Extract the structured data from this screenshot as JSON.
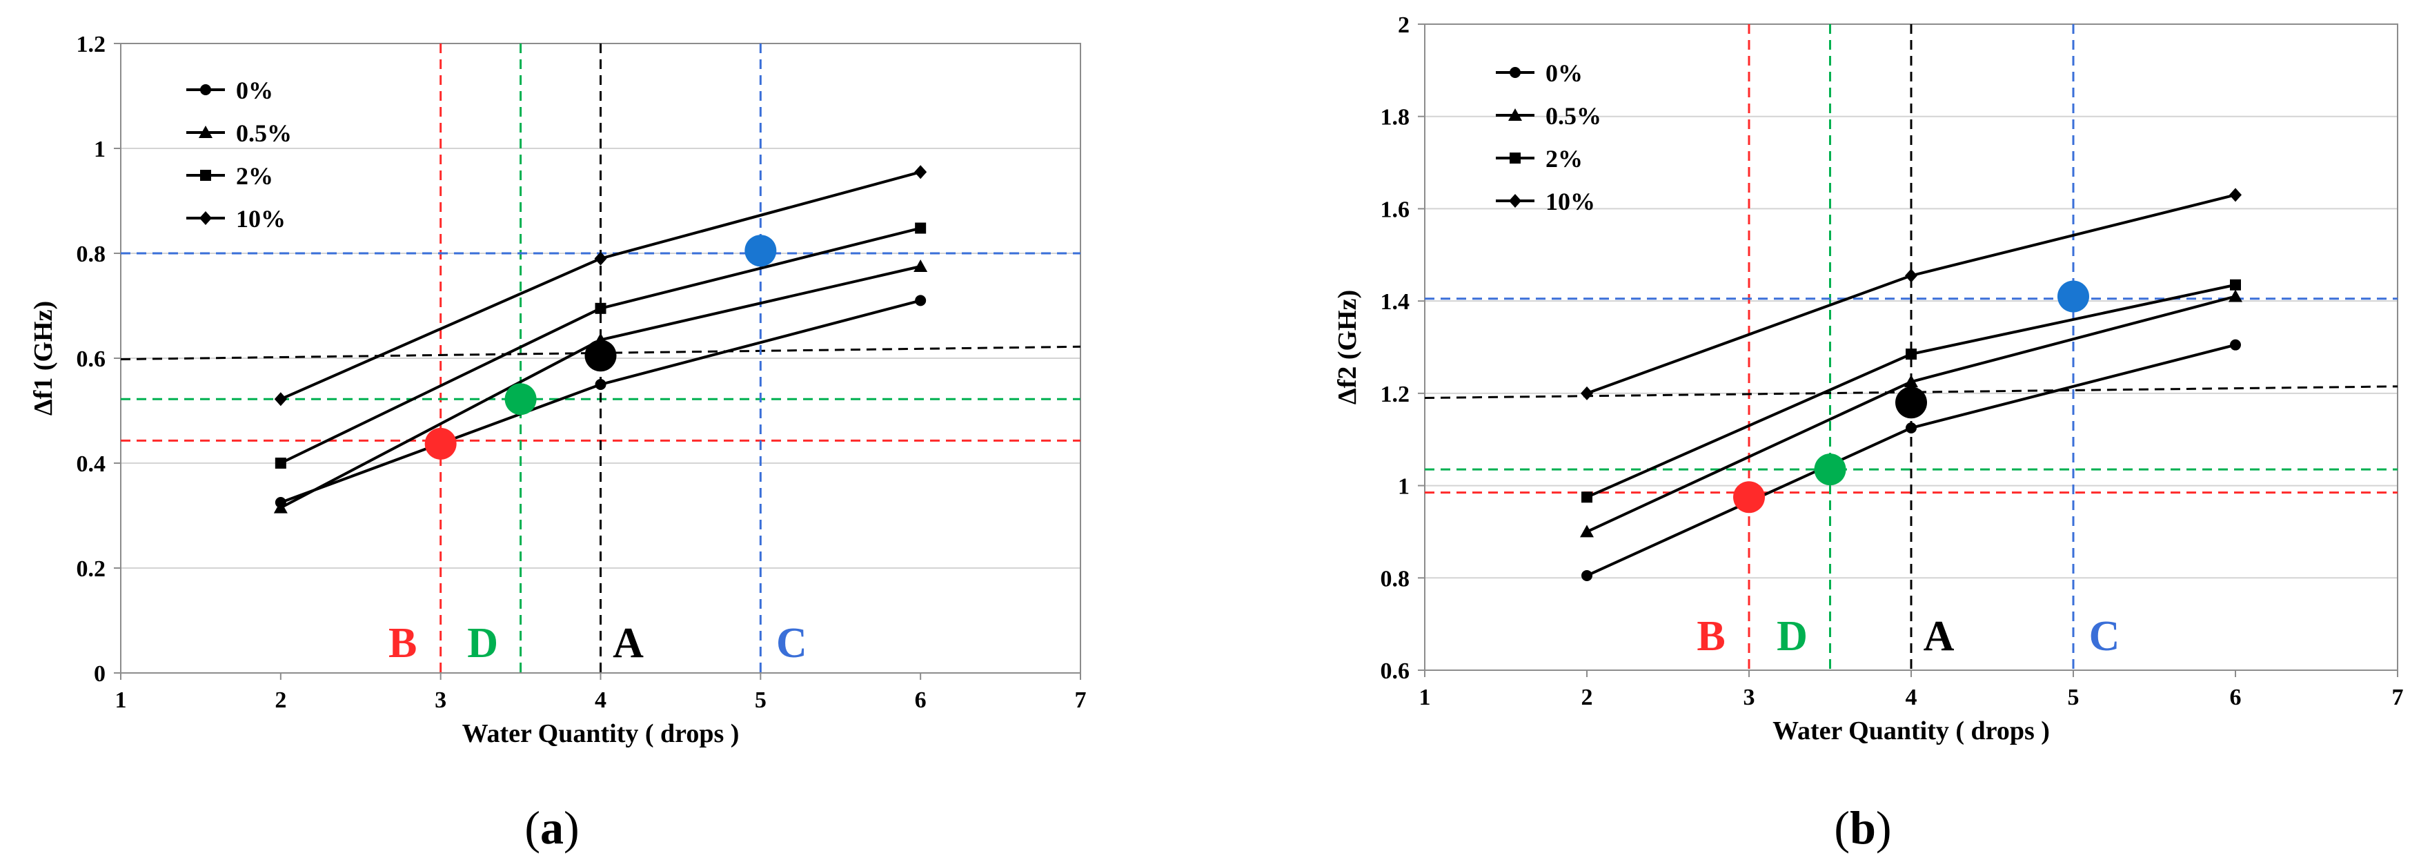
{
  "chart_data": [
    {
      "type": "line",
      "caption_letter": "a",
      "xlabel": "Water Quantity ( drops )",
      "ylabel": "Δf1 (GHz)",
      "xlim": [
        1,
        7
      ],
      "ylim": [
        0,
        1.2
      ],
      "xticks": [
        1,
        2,
        3,
        4,
        5,
        6,
        7
      ],
      "yticks": [
        0,
        0.2,
        0.4,
        0.6,
        0.8,
        1,
        1.2
      ],
      "xtick_labels": [
        "1",
        "2",
        "3",
        "4",
        "5",
        "6",
        "7"
      ],
      "ytick_labels": [
        "0",
        "0.2",
        "0.4",
        "0.6",
        "0.8",
        "1",
        "1.2"
      ],
      "grid": true,
      "legend_position": "top-left",
      "series": [
        {
          "name": "0%",
          "marker": "circle",
          "x": [
            2,
            4,
            6
          ],
          "y": [
            0.325,
            0.55,
            0.71
          ]
        },
        {
          "name": "0.5%",
          "marker": "triangle",
          "x": [
            2,
            4,
            6
          ],
          "y": [
            0.315,
            0.635,
            0.775
          ]
        },
        {
          "name": "2%",
          "marker": "square",
          "x": [
            2,
            4,
            6
          ],
          "y": [
            0.4,
            0.695,
            0.848
          ]
        },
        {
          "name": "10%",
          "marker": "diamond",
          "x": [
            2,
            4,
            6
          ],
          "y": [
            0.522,
            0.79,
            0.955
          ]
        }
      ],
      "reference_lines": [
        {
          "label": "B",
          "color": "#ff2a2a",
          "x": 3,
          "y": 0.443,
          "point_x": 3,
          "point_y": 0.437
        },
        {
          "label": "D",
          "color": "#00b050",
          "x": 3.5,
          "y": 0.522,
          "point_x": 3.5,
          "point_y": 0.522
        },
        {
          "label": "A",
          "color": "#000000",
          "x": 4,
          "y": 0.598,
          "y_end": 0.622,
          "point_x": 4,
          "point_y": 0.605
        },
        {
          "label": "C",
          "color": "#3a6fd8",
          "x": 5,
          "y": 0.8,
          "point_x": 5,
          "point_y": 0.805
        }
      ]
    },
    {
      "type": "line",
      "caption_letter": "b",
      "xlabel": "Water Quantity ( drops )",
      "ylabel": "Δf2 (GHz)",
      "xlim": [
        1,
        7
      ],
      "ylim": [
        0.6,
        2
      ],
      "xticks": [
        1,
        2,
        3,
        4,
        5,
        6,
        7
      ],
      "yticks": [
        0.6,
        0.8,
        1,
        1.2,
        1.4,
        1.6,
        1.8,
        2
      ],
      "xtick_labels": [
        "1",
        "2",
        "3",
        "4",
        "5",
        "6",
        "7"
      ],
      "ytick_labels": [
        "0.6",
        "0.8",
        "1",
        "1.2",
        "1.4",
        "1.6",
        "1.8",
        "2"
      ],
      "grid": true,
      "legend_position": "top-left",
      "series": [
        {
          "name": "0%",
          "marker": "circle",
          "x": [
            2,
            4,
            6
          ],
          "y": [
            0.805,
            1.125,
            1.305
          ]
        },
        {
          "name": "0.5%",
          "marker": "triangle",
          "x": [
            2,
            4,
            6
          ],
          "y": [
            0.9,
            1.225,
            1.41
          ]
        },
        {
          "name": "2%",
          "marker": "square",
          "x": [
            2,
            4,
            6
          ],
          "y": [
            0.975,
            1.285,
            1.435
          ]
        },
        {
          "name": "10%",
          "marker": "diamond",
          "x": [
            2,
            4,
            6
          ],
          "y": [
            1.2,
            1.455,
            1.63
          ]
        }
      ],
      "reference_lines": [
        {
          "label": "B",
          "color": "#ff2a2a",
          "x": 3,
          "y": 0.985,
          "point_x": 3,
          "point_y": 0.975
        },
        {
          "label": "D",
          "color": "#00b050",
          "x": 3.5,
          "y": 1.035,
          "point_x": 3.5,
          "point_y": 1.035
        },
        {
          "label": "A",
          "color": "#000000",
          "x": 4,
          "y": 1.19,
          "y_end": 1.215,
          "point_x": 4,
          "point_y": 1.18
        },
        {
          "label": "C",
          "color": "#3a6fd8",
          "x": 5,
          "y": 1.405,
          "point_x": 5,
          "point_y": 1.41
        }
      ]
    }
  ]
}
